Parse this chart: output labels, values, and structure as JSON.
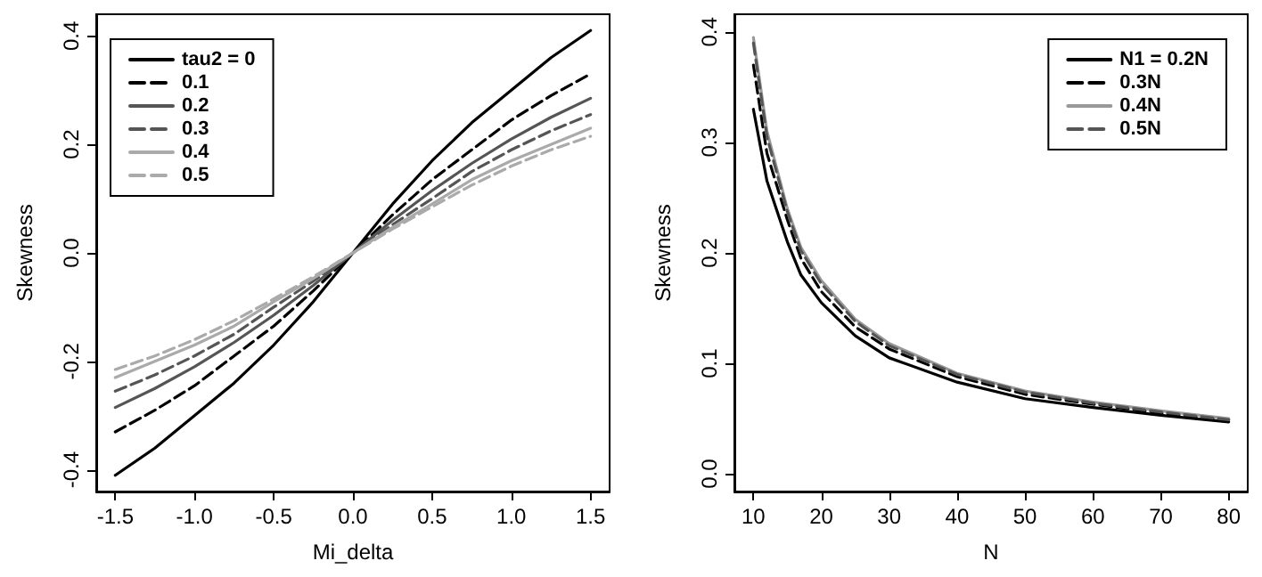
{
  "chart_data": [
    {
      "type": "line",
      "xlabel": "Mi_delta",
      "ylabel": "Skewness",
      "xlim": [
        -1.62,
        1.62
      ],
      "ylim": [
        -0.44,
        0.44
      ],
      "xticks": [
        -1.5,
        {
          "value": -1,
          "label": "-1.0"
        },
        -0.5,
        {
          "value": 0,
          "label": "0.0"
        },
        0.5,
        {
          "value": 1,
          "label": "1.0"
        },
        1.5
      ],
      "yticks": [
        -0.4,
        -0.2,
        {
          "value": 0,
          "label": "0.0"
        },
        0.2,
        0.4
      ],
      "grid": false,
      "legend": "top left",
      "marker": "none",
      "x": [
        -1.5,
        -1.25,
        -1.0,
        -0.75,
        -0.5,
        -0.25,
        0,
        0.25,
        0.5,
        0.75,
        1.0,
        1.25,
        1.5
      ],
      "series": [
        {
          "name": "tau2 = 0",
          "color": "#000000",
          "line_style": "solid",
          "values": [
            -0.41,
            -0.36,
            -0.3,
            -0.24,
            -0.17,
            -0.09,
            0,
            0.09,
            0.17,
            0.24,
            0.3,
            0.36,
            0.41
          ]
        },
        {
          "name": "0.1",
          "color": "#000000",
          "line_style": "dashed",
          "values": [
            -0.33,
            -0.29,
            -0.245,
            -0.19,
            -0.135,
            -0.07,
            0,
            0.07,
            0.135,
            0.19,
            0.245,
            0.29,
            0.33
          ]
        },
        {
          "name": "0.2",
          "color": "#555555",
          "line_style": "solid",
          "values": [
            -0.285,
            -0.25,
            -0.21,
            -0.165,
            -0.115,
            -0.06,
            0,
            0.06,
            0.115,
            0.165,
            0.21,
            0.25,
            0.285
          ]
        },
        {
          "name": "0.3",
          "color": "#555555",
          "line_style": "dashed",
          "values": [
            -0.255,
            -0.225,
            -0.19,
            -0.15,
            -0.1,
            -0.052,
            0,
            0.052,
            0.1,
            0.15,
            0.19,
            0.225,
            0.255
          ]
        },
        {
          "name": "0.4",
          "color": "#aaaaaa",
          "line_style": "solid",
          "values": [
            -0.23,
            -0.2,
            -0.17,
            -0.135,
            -0.09,
            -0.047,
            0,
            0.047,
            0.09,
            0.135,
            0.17,
            0.2,
            0.23
          ]
        },
        {
          "name": "0.5",
          "color": "#aaaaaa",
          "line_style": "dashed",
          "values": [
            -0.215,
            -0.19,
            -0.16,
            -0.125,
            -0.085,
            -0.044,
            0,
            0.044,
            0.085,
            0.125,
            0.16,
            0.19,
            0.215
          ]
        }
      ]
    },
    {
      "type": "line",
      "xlabel": "N",
      "ylabel": "Skewness",
      "xlim": [
        7.2,
        82.8
      ],
      "ylim": [
        -0.016,
        0.416
      ],
      "xticks": [
        10,
        20,
        30,
        40,
        50,
        60,
        70,
        80
      ],
      "yticks": [
        {
          "value": 0,
          "label": "0.0"
        },
        0.1,
        0.2,
        0.3,
        0.4
      ],
      "grid": false,
      "legend": "top right",
      "marker": "none",
      "x": [
        10,
        12,
        15,
        17,
        20,
        25,
        30,
        40,
        50,
        60,
        70,
        80
      ],
      "series": [
        {
          "name": "N1 = 0.2N",
          "color": "#000000",
          "line_style": "solid",
          "values": [
            0.33,
            0.265,
            0.21,
            0.18,
            0.155,
            0.125,
            0.105,
            0.083,
            0.068,
            0.06,
            0.053,
            0.047
          ]
        },
        {
          "name": "0.3N",
          "color": "#000000",
          "line_style": "dashed",
          "values": [
            0.37,
            0.29,
            0.23,
            0.195,
            0.165,
            0.133,
            0.113,
            0.088,
            0.072,
            0.063,
            0.055,
            0.049
          ]
        },
        {
          "name": "0.4N",
          "color": "#999999",
          "line_style": "solid",
          "values": [
            0.395,
            0.31,
            0.24,
            0.205,
            0.175,
            0.14,
            0.118,
            0.091,
            0.075,
            0.065,
            0.057,
            0.05
          ]
        },
        {
          "name": "0.5N",
          "color": "#555555",
          "line_style": "dashed",
          "values": [
            0.39,
            0.305,
            0.237,
            0.202,
            0.172,
            0.138,
            0.116,
            0.09,
            0.074,
            0.064,
            0.056,
            0.049
          ]
        }
      ]
    }
  ]
}
